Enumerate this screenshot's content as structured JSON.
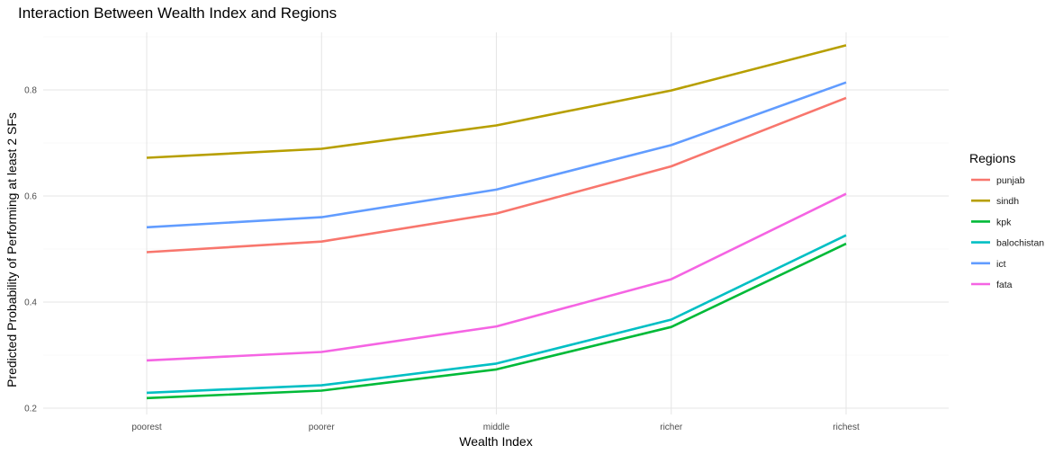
{
  "chart_data": {
    "type": "line",
    "title": "Interaction Between Wealth Index and Regions",
    "xlabel": "Wealth Index",
    "ylabel": "Predicted Probability of Performing at least 2 SFs",
    "categories": [
      "poorest",
      "poorer",
      "middle",
      "richer",
      "richest"
    ],
    "ylim": [
      0.2,
      0.9
    ],
    "yticks": [
      0.2,
      0.4,
      0.6,
      0.8
    ],
    "grid": true,
    "legend": {
      "title": "Regions",
      "placement": "right"
    },
    "series": [
      {
        "name": "punjab",
        "color": "#F8766D",
        "values": [
          0.494,
          0.514,
          0.567,
          0.656,
          0.785
        ]
      },
      {
        "name": "sindh",
        "color": "#B79F00",
        "values": [
          0.672,
          0.689,
          0.733,
          0.799,
          0.884
        ]
      },
      {
        "name": "kpk",
        "color": "#00BA38",
        "values": [
          0.219,
          0.233,
          0.273,
          0.353,
          0.51
        ]
      },
      {
        "name": "balochistan",
        "color": "#00BFC4",
        "values": [
          0.229,
          0.243,
          0.284,
          0.367,
          0.526
        ]
      },
      {
        "name": "ict",
        "color": "#619CFF",
        "values": [
          0.541,
          0.56,
          0.612,
          0.696,
          0.814
        ]
      },
      {
        "name": "fata",
        "color": "#F564E3",
        "values": [
          0.29,
          0.306,
          0.354,
          0.443,
          0.604
        ]
      }
    ]
  }
}
